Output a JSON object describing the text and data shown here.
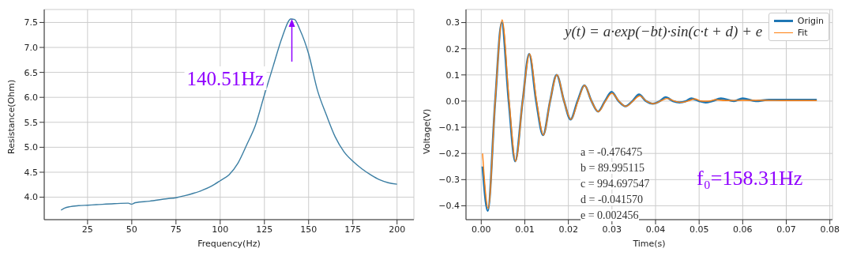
{
  "chart_data": [
    {
      "type": "line",
      "xlabel": "Frequency(Hz)",
      "ylabel": "Resistance(Ohm)",
      "color": "#3b7ea3",
      "grid": true,
      "x": [
        10,
        12,
        15,
        20,
        25,
        30,
        40,
        48,
        50,
        52,
        60,
        70,
        75,
        80,
        85,
        90,
        95,
        100,
        105,
        110,
        115,
        120,
        125,
        130,
        135,
        140,
        142,
        145,
        150,
        155,
        160,
        165,
        170,
        175,
        180,
        185,
        190,
        195,
        200
      ],
      "values": [
        3.74,
        3.78,
        3.81,
        3.83,
        3.84,
        3.85,
        3.87,
        3.88,
        3.86,
        3.89,
        3.92,
        3.97,
        3.99,
        4.03,
        4.08,
        4.14,
        4.22,
        4.33,
        4.45,
        4.68,
        5.05,
        5.45,
        6.05,
        6.63,
        7.2,
        7.57,
        7.56,
        7.36,
        6.87,
        6.14,
        5.65,
        5.21,
        4.91,
        4.72,
        4.57,
        4.45,
        4.35,
        4.29,
        4.26
      ],
      "xlim": [
        0.5,
        209.5
      ],
      "xticks": [
        25,
        50,
        75,
        100,
        125,
        150,
        175,
        200
      ],
      "ylim": [
        3.55,
        7.76
      ],
      "yticks": [
        {
          "value": 4,
          "label": "4.0"
        },
        4.5,
        {
          "value": 5,
          "label": "5.0"
        },
        5.5,
        {
          "value": 6,
          "label": "6.0"
        },
        6.5,
        {
          "value": 7,
          "label": "7.0"
        },
        7.5
      ],
      "annotations": [
        {
          "text": "140.51Hz",
          "x": 140.51,
          "y": 7.57
        }
      ]
    },
    {
      "type": "line",
      "xlabel": "Time(s)",
      "ylabel": "Voltage(V)",
      "grid": true,
      "legend": "top right",
      "series": [
        {
          "name": "Origin",
          "color": "#1f77b4",
          "x": [
            0.0003,
            0.0015,
            0.0032,
            0.0047,
            0.0063,
            0.0078,
            0.0095,
            0.011,
            0.0126,
            0.0142,
            0.0158,
            0.0173,
            0.019,
            0.0205,
            0.0221,
            0.0237,
            0.0253,
            0.0268,
            0.0284,
            0.0299,
            0.0315,
            0.0331,
            0.0347,
            0.0362,
            0.0378,
            0.0394,
            0.041,
            0.0423,
            0.044,
            0.0455,
            0.047,
            0.0482,
            0.05,
            0.0515,
            0.053,
            0.055,
            0.058,
            0.06,
            0.063,
            0.066,
            0.07,
            0.074,
            0.077
          ],
          "values": [
            -0.25,
            -0.42,
            0.0,
            0.3,
            0.0,
            -0.23,
            0.0,
            0.18,
            0.0,
            -0.13,
            0.0,
            0.1,
            0.0,
            -0.07,
            0.0,
            0.06,
            0.0,
            -0.04,
            0.0,
            0.035,
            0.0,
            -0.02,
            0.0,
            0.025,
            0.0,
            -0.01,
            0.0,
            0.015,
            0.0,
            -0.005,
            0.0,
            0.01,
            0.0,
            -0.005,
            0.0,
            0.01,
            0.0,
            0.01,
            0.0,
            0.005,
            0.005,
            0.005,
            0.005
          ]
        },
        {
          "name": "Fit",
          "color": "#ff7f0e",
          "x": [
            0.0003,
            0.0016,
            0.0032,
            0.0048,
            0.0064,
            0.0079,
            0.0095,
            0.0111,
            0.0127,
            0.0143,
            0.0158,
            0.0174,
            0.019,
            0.0206,
            0.0222,
            0.0237,
            0.0253,
            0.0269,
            0.0285,
            0.03,
            0.0316,
            0.0332,
            0.0348,
            0.0364,
            0.0379,
            0.0395,
            0.0411,
            0.0427,
            0.0443,
            0.0458,
            0.0474,
            0.049,
            0.0506,
            0.0522,
            0.0537,
            0.056,
            0.06,
            0.065,
            0.07,
            0.077
          ],
          "values": [
            -0.2,
            -0.41,
            0.0,
            0.31,
            0.0,
            -0.23,
            0.0,
            0.18,
            0.0,
            -0.13,
            0.0,
            0.1,
            0.0,
            -0.07,
            0.0,
            0.06,
            0.0,
            -0.04,
            0.0,
            0.03,
            0.0,
            -0.02,
            0.0,
            0.02,
            0.0,
            -0.01,
            0.0,
            0.01,
            0.0,
            -0.005,
            0.0,
            0.008,
            0.0,
            0.0,
            0.005,
            0.002,
            0.003,
            0.003,
            0.002,
            0.002
          ]
        }
      ],
      "xlim": [
        -0.0035,
        0.0806
      ],
      "xticks": [
        {
          "value": 0,
          "label": "0.00"
        },
        0.01,
        0.02,
        0.03,
        0.04,
        0.05,
        0.06,
        0.07,
        0.08
      ],
      "ylim": [
        -0.453,
        0.35
      ],
      "yticks": [
        {
          "value": -0.4,
          "label": "−0.4"
        },
        {
          "value": -0.3,
          "label": "−0.3"
        },
        {
          "value": -0.2,
          "label": "−0.2"
        },
        {
          "value": -0.1,
          "label": "−0.1"
        },
        {
          "value": 0,
          "label": "0.0"
        },
        0.1,
        0.2,
        0.3
      ],
      "annotations": [
        "y(t) = a·exp(−bt)·sin(c·t + d) + e",
        "a = -0.476475",
        "b = 89.995115",
        "c = 994.697547",
        "d = -0.041570",
        "e = 0.002456",
        "f₀=158.31Hz"
      ]
    }
  ]
}
